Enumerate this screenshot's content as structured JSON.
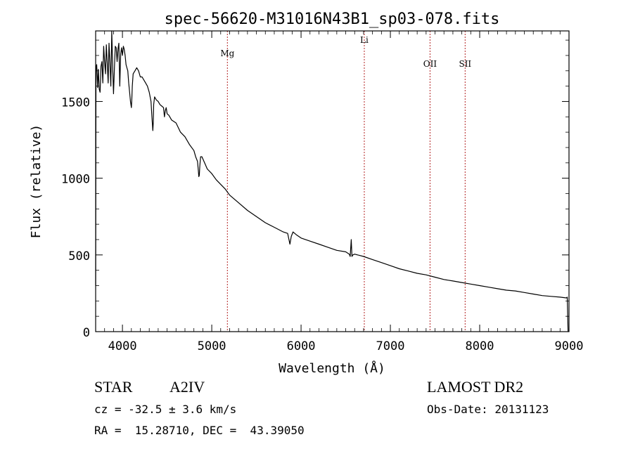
{
  "chart_data": {
    "type": "line",
    "title": "spec-56620-M31016N43B1_sp03-078.fits",
    "xlabel": "Wavelength (Å)",
    "ylabel": "Flux (relative)",
    "xlim": [
      3700,
      9000
    ],
    "ylim": [
      0,
      1960
    ],
    "x_ticks": [
      4000,
      5000,
      6000,
      7000,
      8000,
      9000
    ],
    "y_ticks": [
      0,
      500,
      1000,
      1500
    ],
    "x_tick_labels": [
      "4000",
      "5000",
      "6000",
      "7000",
      "8000",
      "9000"
    ],
    "y_tick_labels": [
      "0",
      "500",
      "1000",
      "1500"
    ],
    "grid": false,
    "line_color": "#000000",
    "marker_color": "#b22222",
    "series": [
      {
        "x": [
          3700,
          3704,
          3712,
          3722,
          3730,
          3740,
          3750,
          3760,
          3770,
          3780,
          3790,
          3800,
          3810,
          3820,
          3830,
          3840,
          3850,
          3860,
          3870,
          3880,
          3890,
          3900,
          3910,
          3920,
          3930,
          3940,
          3950,
          3960,
          3970,
          3980,
          3990,
          4000,
          4010,
          4020,
          4030,
          4040,
          4050,
          4060,
          4070,
          4080,
          4090,
          4100,
          4105,
          4110,
          4120,
          4140,
          4160,
          4180,
          4200,
          4220,
          4240,
          4260,
          4280,
          4300,
          4320,
          4330,
          4340,
          4345,
          4350,
          4360,
          4380,
          4400,
          4420,
          4440,
          4460,
          4470,
          4480,
          4490,
          4500,
          4520,
          4550,
          4600,
          4650,
          4700,
          4750,
          4800,
          4820,
          4840,
          4850,
          4855,
          4861,
          4866,
          4875,
          4890,
          4920,
          4950,
          5000,
          5050,
          5100,
          5150,
          5200,
          5300,
          5400,
          5500,
          5600,
          5700,
          5800,
          5850,
          5875,
          5890,
          5910,
          5950,
          6000,
          6100,
          6200,
          6300,
          6400,
          6500,
          6540,
          6550,
          6562,
          6570,
          6580,
          6600,
          6700,
          6800,
          6900,
          7000,
          7100,
          7200,
          7300,
          7400,
          7500,
          7600,
          7700,
          7800,
          7900,
          8000,
          8100,
          8200,
          8300,
          8400,
          8500,
          8600,
          8700,
          8800,
          8900,
          8970,
          8980,
          8990
        ],
        "values": [
          300,
          1720,
          1740,
          1590,
          1710,
          1580,
          1560,
          1730,
          1760,
          1620,
          1860,
          1760,
          1680,
          1870,
          1750,
          1620,
          1880,
          1750,
          1600,
          1960,
          1740,
          1550,
          1720,
          1860,
          1850,
          1760,
          1840,
          1880,
          1600,
          1810,
          1850,
          1800,
          1860,
          1840,
          1800,
          1740,
          1720,
          1700,
          1620,
          1560,
          1500,
          1460,
          1510,
          1600,
          1680,
          1700,
          1720,
          1700,
          1660,
          1660,
          1640,
          1620,
          1600,
          1560,
          1500,
          1400,
          1310,
          1360,
          1480,
          1530,
          1510,
          1500,
          1480,
          1470,
          1460,
          1400,
          1440,
          1460,
          1420,
          1410,
          1380,
          1360,
          1300,
          1270,
          1220,
          1180,
          1140,
          1110,
          1050,
          1010,
          1020,
          1080,
          1140,
          1140,
          1100,
          1060,
          1030,
          990,
          960,
          930,
          890,
          840,
          790,
          750,
          710,
          680,
          650,
          640,
          570,
          620,
          650,
          630,
          610,
          590,
          570,
          550,
          530,
          520,
          505,
          490,
          600,
          490,
          500,
          505,
          490,
          470,
          450,
          430,
          410,
          395,
          380,
          370,
          355,
          340,
          330,
          320,
          310,
          300,
          290,
          280,
          270,
          265,
          255,
          245,
          235,
          230,
          225,
          220,
          225,
          0
        ]
      }
    ],
    "lines": [
      {
        "label": "Mg",
        "x": 5175
      },
      {
        "label": "Li",
        "x": 6708
      },
      {
        "label": "OII",
        "x": 7444
      },
      {
        "label": "SII",
        "x": 7837
      }
    ]
  },
  "info": {
    "class_label": "STAR",
    "subclass_label": "A2IV",
    "survey_label": "LAMOST DR2",
    "cz_text": "cz = -32.5 ± 3.6 km/s",
    "obsdate_text": "Obs-Date: 20131123",
    "coords_text": "RA =  15.28710, DEC =  43.39050"
  }
}
